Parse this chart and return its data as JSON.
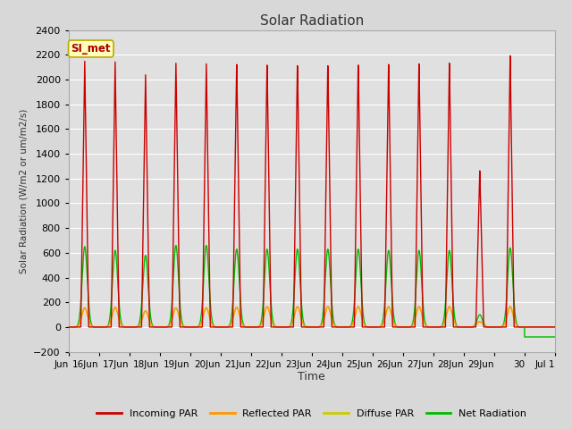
{
  "title": "Solar Radiation",
  "ylabel": "Solar Radiation (W/m2 or um/m2/s)",
  "xlabel": "Time",
  "ylim": [
    -200,
    2400
  ],
  "yticks": [
    -200,
    0,
    200,
    400,
    600,
    800,
    1000,
    1200,
    1400,
    1600,
    1800,
    2000,
    2200,
    2400
  ],
  "fig_bg_color": "#d8d8d8",
  "plot_bg_color": "#e0e0e0",
  "grid_color": "#ffffff",
  "series": {
    "incoming_par": {
      "color": "#cc0000",
      "label": "Incoming PAR"
    },
    "reflected_par": {
      "color": "#ff9900",
      "label": "Reflected PAR"
    },
    "diffuse_par": {
      "color": "#cccc00",
      "label": "Diffuse PAR"
    },
    "net_radiation": {
      "color": "#00bb00",
      "label": "Net Radiation"
    }
  },
  "annotation_label": "SI_met",
  "annotation_color": "#aa0000",
  "annotation_bg": "#ffffbb",
  "annotation_border": "#bbaa00",
  "num_days": 16,
  "x_tick_labels": [
    "Jun",
    "16Jun",
    "17Jun",
    "18Jun",
    "19Jun",
    "20Jun",
    "21Jun",
    "22Jun",
    "23Jun",
    "24Jun",
    "25Jun",
    "26Jun",
    "27Jun",
    "28Jun",
    "29Jun",
    "30",
    "Jul 1"
  ],
  "peaks_incoming": [
    2150,
    2150,
    2050,
    2150,
    2150,
    2150,
    2150,
    2150,
    2150,
    2150,
    2150,
    2150,
    2150,
    1270,
    2200
  ],
  "peaks_net": [
    650,
    620,
    580,
    660,
    660,
    630,
    630,
    630,
    630,
    630,
    620,
    620,
    620,
    100,
    640
  ],
  "peaks_diffuse": [
    155,
    160,
    130,
    155,
    155,
    160,
    165,
    165,
    165,
    165,
    165,
    165,
    165,
    45,
    165
  ],
  "peaks_reflected": [
    155,
    160,
    130,
    155,
    155,
    160,
    165,
    165,
    165,
    165,
    165,
    165,
    165,
    45,
    165
  ],
  "night_net": -80,
  "linewidth": 1.0
}
